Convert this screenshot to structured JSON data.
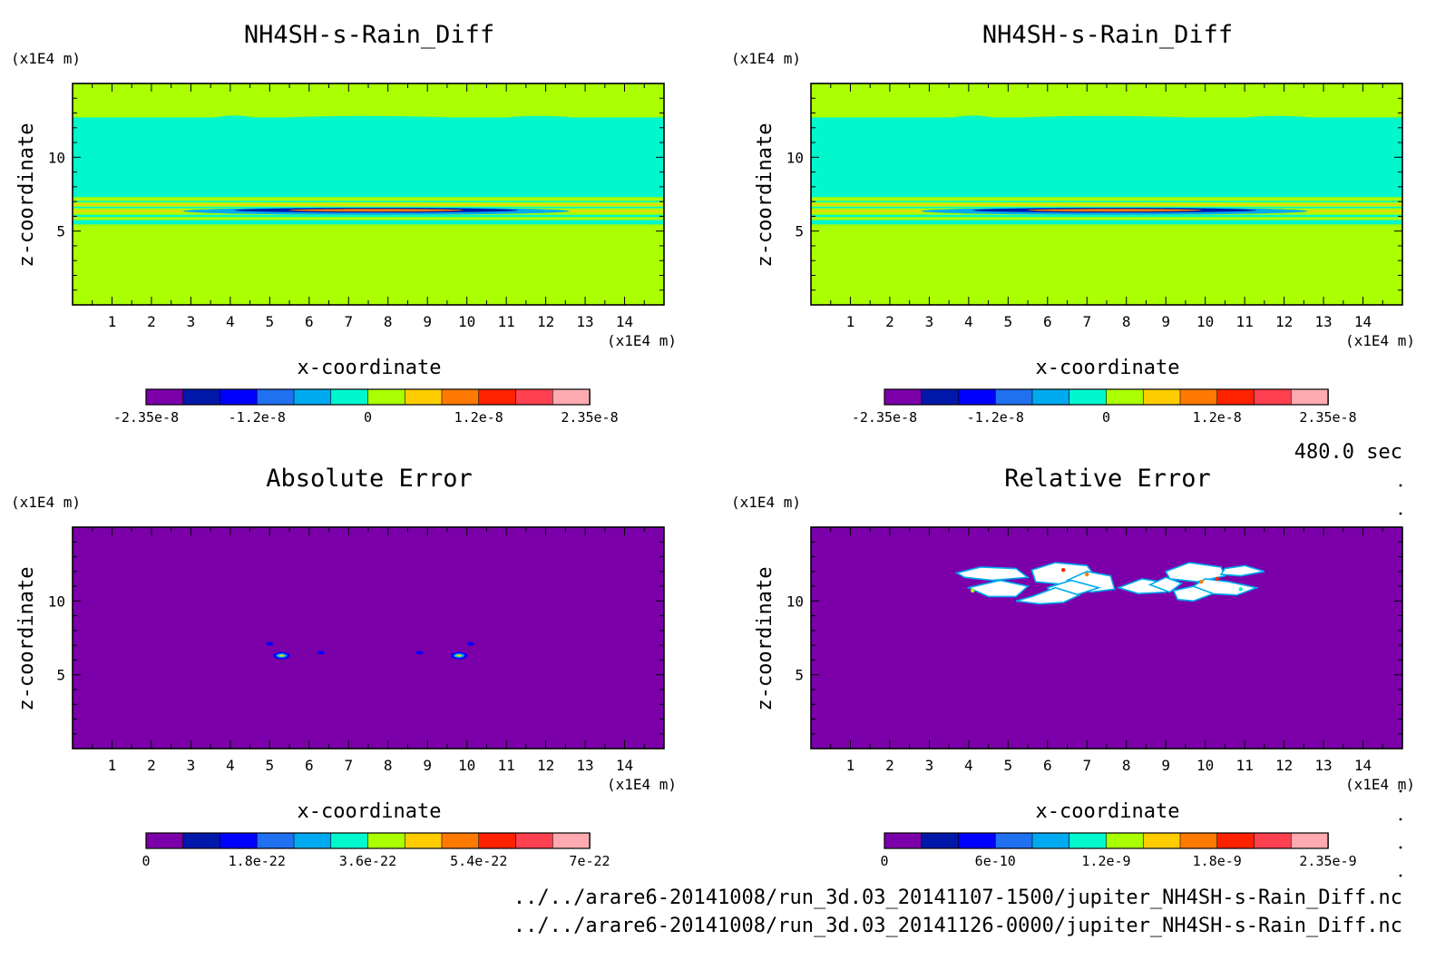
{
  "palette": [
    "#7B00AA",
    "#0018AA",
    "#0000FF",
    "#2070F0",
    "#00AAF0",
    "#00F8CC",
    "#AAFF00",
    "#FFCC00",
    "#FF7A00",
    "#FF2200",
    "#FF4050",
    "#FFAAB0"
  ],
  "time_label": "480.0 sec",
  "footer": {
    "file1": "../../arare6-20141008/run_3d.03_20141107-1500/jupiter_NH4SH-s-Rain_Diff.nc",
    "file2": "../../arare6-20141008/run_3d.03_20141126-0000/jupiter_NH4SH-s-Rain_Diff.nc"
  },
  "chart_data": [
    {
      "type": "heatmap",
      "title": "NH4SH-s-Rain_Diff",
      "xlabel": "x-coordinate",
      "ylabel": "z-coordinate",
      "x_unit": "(x1E4 m)",
      "y_unit": "(x1E4 m)",
      "xlim": [
        0,
        15
      ],
      "ylim": [
        0,
        15
      ],
      "x_ticks": [
        "1",
        "2",
        "3",
        "4",
        "5",
        "6",
        "7",
        "8",
        "9",
        "10",
        "11",
        "12",
        "13",
        "14"
      ],
      "y_ticks": [
        "5",
        "10"
      ],
      "background_level": "0 to 1.2e-8 (green)",
      "bands": [
        {
          "z_from": 7.3,
          "z_to": 12.7,
          "color": "#00F8CC"
        },
        {
          "z_from": 5.4,
          "z_to": 5.7,
          "color": "#00F8CC"
        },
        {
          "z_from": 6.1,
          "z_to": 6.3,
          "color": "#00F8CC"
        },
        {
          "z_from": 6.7,
          "z_to": 6.85,
          "color": "#00F8CC"
        }
      ],
      "colorbar": {
        "labels": [
          "-2.35e-8",
          "-1.2e-8",
          "0",
          "1.2e-8",
          "2.35e-8"
        ],
        "levels": 12
      }
    },
    {
      "type": "heatmap",
      "title": "NH4SH-s-Rain_Diff",
      "xlabel": "x-coordinate",
      "ylabel": "z-coordinate",
      "x_unit": "(x1E4 m)",
      "y_unit": "(x1E4 m)",
      "xlim": [
        0,
        15
      ],
      "ylim": [
        0,
        15
      ],
      "x_ticks": [
        "1",
        "2",
        "3",
        "4",
        "5",
        "6",
        "7",
        "8",
        "9",
        "10",
        "11",
        "12",
        "13",
        "14"
      ],
      "y_ticks": [
        "5",
        "10"
      ],
      "background_level": "0 to 1.2e-8 (green)",
      "colorbar": {
        "labels": [
          "-2.35e-8",
          "-1.2e-8",
          "0",
          "1.2e-8",
          "2.35e-8"
        ],
        "levels": 12
      }
    },
    {
      "type": "heatmap",
      "title": "Absolute Error",
      "xlabel": "x-coordinate",
      "ylabel": "z-coordinate",
      "x_unit": "(x1E4 m)",
      "y_unit": "(x1E4 m)",
      "xlim": [
        0,
        15
      ],
      "ylim": [
        0,
        15
      ],
      "x_ticks": [
        "1",
        "2",
        "3",
        "4",
        "5",
        "6",
        "7",
        "8",
        "9",
        "10",
        "11",
        "12",
        "13",
        "14"
      ],
      "y_ticks": [
        "5",
        "10"
      ],
      "background_level": "0 (purple)",
      "spots": [
        {
          "x": 5.3,
          "z": 6.3
        },
        {
          "x": 9.8,
          "z": 6.3
        },
        {
          "x": 5.0,
          "z": 7.1
        },
        {
          "x": 10.1,
          "z": 7.1
        },
        {
          "x": 6.3,
          "z": 6.5
        },
        {
          "x": 8.8,
          "z": 6.5
        }
      ],
      "colorbar": {
        "labels": [
          "0",
          "1.8e-22",
          "3.6e-22",
          "5.4e-22",
          "7e-22"
        ],
        "levels": 12
      }
    },
    {
      "type": "heatmap",
      "title": "Relative Error",
      "xlabel": "x-coordinate",
      "ylabel": "z-coordinate",
      "x_unit": "(x1E4 m)",
      "y_unit": "(x1E4 m)",
      "xlim": [
        0,
        15
      ],
      "ylim": [
        0,
        15
      ],
      "x_ticks": [
        "1",
        "2",
        "3",
        "4",
        "5",
        "6",
        "7",
        "8",
        "9",
        "10",
        "11",
        "12",
        "13",
        "14"
      ],
      "y_ticks": [
        "5",
        "10"
      ],
      "background_level": "0 (purple)",
      "blank_region": "undefined (white) near x 3.7-11.5, z 9.3-12.5",
      "colorbar": {
        "labels": [
          "0",
          "6e-10",
          "1.2e-9",
          "1.8e-9",
          "2.35e-9"
        ],
        "levels": 12
      }
    }
  ]
}
